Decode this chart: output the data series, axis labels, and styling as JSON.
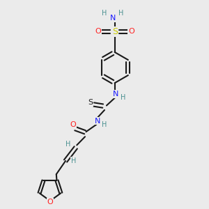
{
  "background_color": "#ebebeb",
  "atom_colors": {
    "C": "#1a1a1a",
    "H": "#4a9090",
    "N": "#1a1aff",
    "O": "#ff2020",
    "S_sulfo": "#cccc00",
    "S_thio": "#1a1a1a"
  },
  "bond_color": "#1a1a1a",
  "bond_width": 1.5,
  "figsize": [
    3.0,
    3.0
  ],
  "dpi": 100
}
